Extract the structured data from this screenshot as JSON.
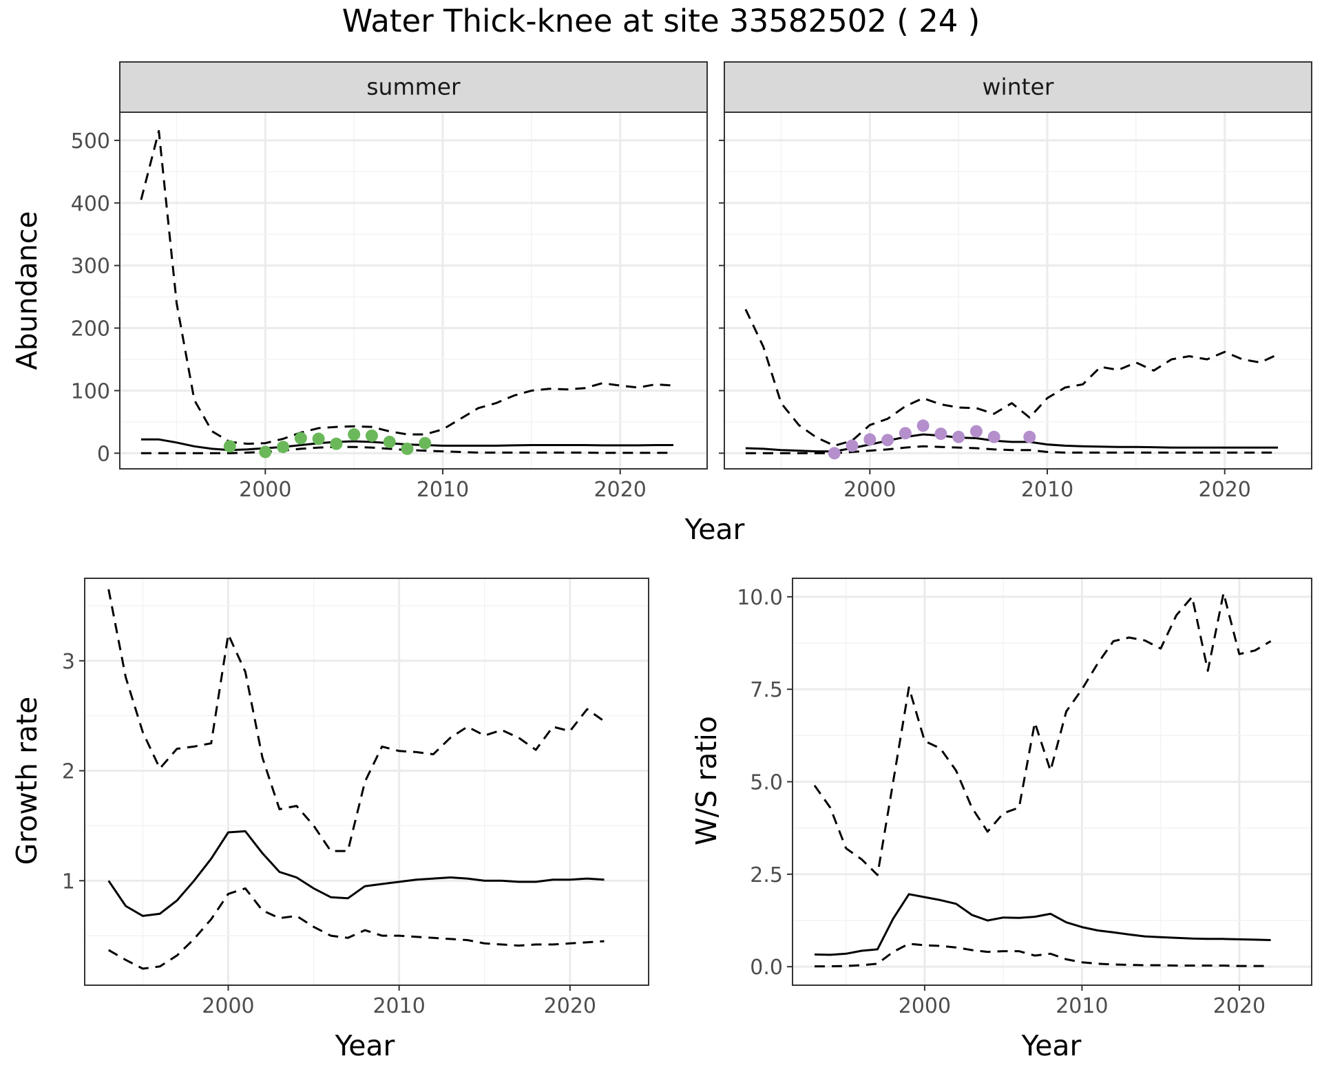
{
  "title": "Water Thick-knee at site 33582502 ( 24 )",
  "colors": {
    "summer_points": "#6ab85a",
    "winter_points": "#b48fcc",
    "lines": "#000000"
  },
  "chart_data": [
    {
      "type": "line",
      "facet": "summer",
      "xlabel": "Year",
      "ylabel": "Abundance",
      "xlim": [
        1991.8,
        2024.9
      ],
      "ylim": [
        -25,
        545
      ],
      "xticks": [
        2000,
        2010,
        2020
      ],
      "yticks": [
        0,
        100,
        200,
        300,
        400,
        500
      ],
      "grid": true,
      "series": [
        {
          "role": "mean",
          "style": "solid",
          "x": [
            1993,
            1994,
            1995,
            1996,
            1997,
            1998,
            1999,
            2000,
            2001,
            2002,
            2003,
            2004,
            2005,
            2006,
            2007,
            2008,
            2009,
            2010,
            2011,
            2012,
            2013,
            2014,
            2015,
            2016,
            2017,
            2018,
            2019,
            2020,
            2021,
            2022,
            2023
          ],
          "y": [
            22,
            22,
            17,
            11,
            7,
            5,
            6,
            8,
            10,
            13,
            16,
            18,
            19,
            18,
            16,
            14,
            13,
            12,
            12,
            12,
            12,
            12.5,
            13,
            13,
            13,
            13,
            12.5,
            12.5,
            12.5,
            13,
            13
          ]
        },
        {
          "role": "upper",
          "style": "dashed",
          "x": [
            1993,
            1994,
            1995,
            1996,
            1997,
            1998,
            1999,
            2000,
            2001,
            2002,
            2003,
            2004,
            2005,
            2006,
            2007,
            2008,
            2009,
            2010,
            2011,
            2012,
            2013,
            2014,
            2015,
            2016,
            2017,
            2018,
            2019,
            2020,
            2021,
            2022,
            2023
          ],
          "y": [
            405,
            515,
            240,
            85,
            35,
            18,
            15,
            16,
            23,
            33,
            40,
            42,
            43,
            42,
            35,
            30,
            30,
            38,
            55,
            72,
            80,
            92,
            100,
            103,
            102,
            104,
            112,
            108,
            105,
            110,
            108
          ]
        },
        {
          "role": "lower",
          "style": "dashed",
          "x": [
            1993,
            1994,
            1995,
            1996,
            1997,
            1998,
            1999,
            2000,
            2001,
            2002,
            2003,
            2004,
            2005,
            2006,
            2007,
            2008,
            2009,
            2010,
            2011,
            2012,
            2013,
            2014,
            2015,
            2016,
            2017,
            2018,
            2019,
            2020,
            2021,
            2022,
            2023
          ],
          "y": [
            0,
            0,
            0,
            0,
            0,
            0,
            1,
            2,
            4,
            7,
            9,
            10,
            10,
            9,
            7,
            5,
            4,
            3,
            2,
            1,
            1,
            1,
            1,
            1,
            1,
            1,
            0.5,
            0.5,
            0.5,
            0.5,
            0.5
          ]
        },
        {
          "role": "observed",
          "style": "points",
          "x": [
            1998,
            2000,
            2001,
            2002,
            2003,
            2004,
            2005,
            2006,
            2007,
            2008,
            2009
          ],
          "y": [
            11,
            2,
            10,
            24,
            23,
            15,
            30,
            28,
            18,
            7,
            16
          ]
        }
      ]
    },
    {
      "type": "line",
      "facet": "winter",
      "xlabel": "Year",
      "ylabel": "Abundance",
      "xlim": [
        1991.8,
        2024.9
      ],
      "ylim": [
        -25,
        545
      ],
      "xticks": [
        2000,
        2010,
        2020
      ],
      "yticks": [
        0,
        100,
        200,
        300,
        400,
        500
      ],
      "grid": true,
      "series": [
        {
          "role": "mean",
          "style": "solid",
          "x": [
            1993,
            1994,
            1995,
            1996,
            1997,
            1998,
            1999,
            2000,
            2001,
            2002,
            2003,
            2004,
            2005,
            2006,
            2007,
            2008,
            2009,
            2010,
            2011,
            2012,
            2013,
            2014,
            2015,
            2016,
            2017,
            2018,
            2019,
            2020,
            2021,
            2022,
            2023
          ],
          "y": [
            8,
            7,
            5,
            4,
            3,
            3,
            8,
            14,
            20,
            26,
            30,
            28,
            25,
            24,
            20,
            18,
            18,
            14,
            12,
            11,
            10.5,
            10,
            10,
            9.5,
            9,
            9,
            9,
            9,
            9,
            9,
            9
          ]
        },
        {
          "role": "upper",
          "style": "dashed",
          "x": [
            1993,
            1994,
            1995,
            1996,
            1997,
            1998,
            1999,
            2000,
            2001,
            2002,
            2003,
            2004,
            2005,
            2006,
            2007,
            2008,
            2009,
            2010,
            2011,
            2012,
            2013,
            2014,
            2015,
            2016,
            2017,
            2018,
            2019,
            2020,
            2021,
            2022,
            2023
          ],
          "y": [
            230,
            170,
            80,
            45,
            25,
            12,
            20,
            45,
            55,
            75,
            88,
            78,
            73,
            72,
            63,
            80,
            57,
            88,
            105,
            110,
            138,
            133,
            145,
            132,
            150,
            155,
            150,
            162,
            150,
            145,
            158
          ]
        },
        {
          "role": "lower",
          "style": "dashed",
          "x": [
            1993,
            1994,
            1995,
            1996,
            1997,
            1998,
            1999,
            2000,
            2001,
            2002,
            2003,
            2004,
            2005,
            2006,
            2007,
            2008,
            2009,
            2010,
            2011,
            2012,
            2013,
            2014,
            2015,
            2016,
            2017,
            2018,
            2019,
            2020,
            2021,
            2022,
            2023
          ],
          "y": [
            0,
            0,
            0,
            0,
            0,
            0,
            2,
            4,
            6,
            9,
            11,
            10,
            9,
            8,
            6,
            5,
            5,
            2,
            1,
            1,
            1,
            1,
            1,
            1,
            1,
            1,
            1,
            1,
            1,
            1,
            1
          ]
        },
        {
          "role": "observed",
          "style": "points",
          "x": [
            1998,
            1999,
            2000,
            2001,
            2002,
            2003,
            2004,
            2005,
            2006,
            2007,
            2009
          ],
          "y": [
            0,
            12,
            22,
            21,
            32,
            44,
            31,
            26,
            35,
            26,
            26
          ]
        }
      ]
    },
    {
      "type": "line",
      "facet": "growth",
      "xlabel": "Year",
      "ylabel": "Growth rate",
      "xlim": [
        1991.6,
        2024.6
      ],
      "ylim": [
        0.05,
        3.75
      ],
      "xticks": [
        2000,
        2010,
        2020
      ],
      "yticks": [
        1,
        2,
        3
      ],
      "grid": true,
      "series": [
        {
          "role": "mean",
          "style": "solid",
          "x": [
            1993,
            1994,
            1995,
            1996,
            1997,
            1998,
            1999,
            2000,
            2001,
            2002,
            2003,
            2004,
            2005,
            2006,
            2007,
            2008,
            2009,
            2010,
            2011,
            2012,
            2013,
            2014,
            2015,
            2016,
            2017,
            2018,
            2019,
            2020,
            2021,
            2022
          ],
          "y": [
            1.0,
            0.77,
            0.68,
            0.7,
            0.82,
            1.0,
            1.2,
            1.44,
            1.45,
            1.25,
            1.08,
            1.03,
            0.93,
            0.85,
            0.84,
            0.95,
            0.97,
            0.99,
            1.01,
            1.02,
            1.03,
            1.02,
            1.0,
            1.0,
            0.99,
            0.99,
            1.01,
            1.01,
            1.02,
            1.01
          ]
        },
        {
          "role": "upper",
          "style": "dashed",
          "x": [
            1993,
            1994,
            1995,
            1996,
            1997,
            1998,
            1999,
            2000,
            2001,
            2002,
            2003,
            2004,
            2005,
            2006,
            2007,
            2008,
            2009,
            2010,
            2011,
            2012,
            2013,
            2014,
            2015,
            2016,
            2017,
            2018,
            2019,
            2020,
            2021,
            2022
          ],
          "y": [
            3.65,
            2.85,
            2.35,
            2.02,
            2.2,
            2.22,
            2.25,
            3.24,
            2.9,
            2.12,
            1.65,
            1.68,
            1.5,
            1.27,
            1.27,
            1.9,
            2.22,
            2.18,
            2.17,
            2.15,
            2.3,
            2.4,
            2.32,
            2.37,
            2.3,
            2.19,
            2.4,
            2.36,
            2.56,
            2.45
          ]
        },
        {
          "role": "lower",
          "style": "dashed",
          "x": [
            1993,
            1994,
            1995,
            1996,
            1997,
            1998,
            1999,
            2000,
            2001,
            2002,
            2003,
            2004,
            2005,
            2006,
            2007,
            2008,
            2009,
            2010,
            2011,
            2012,
            2013,
            2014,
            2015,
            2016,
            2017,
            2018,
            2019,
            2020,
            2021,
            2022
          ],
          "y": [
            0.37,
            0.28,
            0.2,
            0.22,
            0.32,
            0.47,
            0.65,
            0.88,
            0.93,
            0.73,
            0.66,
            0.68,
            0.58,
            0.5,
            0.48,
            0.55,
            0.5,
            0.5,
            0.49,
            0.48,
            0.47,
            0.46,
            0.43,
            0.42,
            0.41,
            0.42,
            0.42,
            0.43,
            0.44,
            0.45
          ]
        }
      ]
    },
    {
      "type": "line",
      "facet": "ratio",
      "xlabel": "Year",
      "ylabel": "W/S ratio",
      "xlim": [
        1991.6,
        2024.6
      ],
      "ylim": [
        -0.5,
        10.5
      ],
      "xticks": [
        2000,
        2010,
        2020
      ],
      "yticks": [
        0,
        2.5,
        5,
        7.5,
        10
      ],
      "yticklabels": [
        "0.0",
        "2.5",
        "5.0",
        "7.5",
        "10.0"
      ],
      "grid": true,
      "series": [
        {
          "role": "mean",
          "style": "solid",
          "x": [
            1993,
            1994,
            1995,
            1996,
            1997,
            1998,
            1999,
            2000,
            2001,
            2002,
            2003,
            2004,
            2005,
            2006,
            2007,
            2008,
            2009,
            2010,
            2011,
            2012,
            2013,
            2014,
            2015,
            2016,
            2017,
            2018,
            2019,
            2020,
            2021,
            2022
          ],
          "y": [
            0.33,
            0.32,
            0.35,
            0.43,
            0.47,
            1.3,
            1.96,
            1.88,
            1.8,
            1.7,
            1.4,
            1.25,
            1.33,
            1.32,
            1.35,
            1.43,
            1.2,
            1.07,
            0.98,
            0.93,
            0.87,
            0.82,
            0.8,
            0.78,
            0.76,
            0.75,
            0.75,
            0.74,
            0.73,
            0.72
          ]
        },
        {
          "role": "upper",
          "style": "dashed",
          "x": [
            1993,
            1994,
            1995,
            1996,
            1997,
            1998,
            1999,
            2000,
            2001,
            2002,
            2003,
            2004,
            2005,
            2006,
            2007,
            2008,
            2009,
            2010,
            2011,
            2012,
            2013,
            2014,
            2015,
            2016,
            2017,
            2018,
            2019,
            2020,
            2021,
            2022
          ],
          "y": [
            4.9,
            4.3,
            3.2,
            2.9,
            2.48,
            5.0,
            7.55,
            6.1,
            5.9,
            5.3,
            4.3,
            3.65,
            4.15,
            4.3,
            6.6,
            5.3,
            6.9,
            7.5,
            8.2,
            8.8,
            8.9,
            8.82,
            8.6,
            9.5,
            10.0,
            8.0,
            10.1,
            8.45,
            8.55,
            8.8
          ]
        },
        {
          "role": "lower",
          "style": "dashed",
          "x": [
            1993,
            1994,
            1995,
            1996,
            1997,
            1998,
            1999,
            2000,
            2001,
            2002,
            2003,
            2004,
            2005,
            2006,
            2007,
            2008,
            2009,
            2010,
            2011,
            2012,
            2013,
            2014,
            2015,
            2016,
            2017,
            2018,
            2019,
            2020,
            2021,
            2022
          ],
          "y": [
            0.01,
            0.01,
            0.02,
            0.04,
            0.08,
            0.4,
            0.62,
            0.58,
            0.56,
            0.52,
            0.45,
            0.4,
            0.42,
            0.42,
            0.3,
            0.35,
            0.2,
            0.12,
            0.08,
            0.06,
            0.05,
            0.04,
            0.04,
            0.03,
            0.03,
            0.03,
            0.03,
            0.02,
            0.02,
            0.02
          ]
        }
      ]
    }
  ]
}
